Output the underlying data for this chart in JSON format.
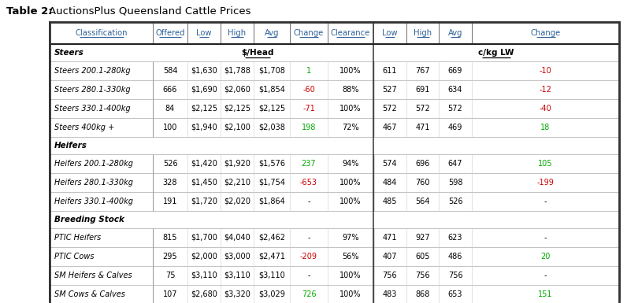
{
  "title_bold": "Table 2:",
  "title_regular": "AuctionsPlus Queensland Cattle Prices",
  "headers": [
    "Classification",
    "Offered",
    "Low",
    "High",
    "Avg",
    "Change",
    "Clearance",
    "Low",
    "High",
    "Avg",
    "Change"
  ],
  "rows": [
    {
      "type": "section",
      "cat": "Steers",
      "subhead_dollar": "$/Head",
      "subhead_ckg": "c/kg LW"
    },
    {
      "type": "data",
      "cat": "Steers 200.1-280kg",
      "offered": "584",
      "low": "$1,630",
      "high": "$1,788",
      "avg": "$1,708",
      "change": "1",
      "change_color": "green",
      "clearance": "100%",
      "clow": "611",
      "chigh": "767",
      "cavg": "669",
      "cchange": "-10",
      "cchange_color": "red"
    },
    {
      "type": "data",
      "cat": "Steers 280.1-330kg",
      "offered": "666",
      "low": "$1,690",
      "high": "$2,060",
      "avg": "$1,854",
      "change": "-60",
      "change_color": "red",
      "clearance": "88%",
      "clow": "527",
      "chigh": "691",
      "cavg": "634",
      "cchange": "-12",
      "cchange_color": "red"
    },
    {
      "type": "data",
      "cat": "Steers 330.1-400kg",
      "offered": "84",
      "low": "$2,125",
      "high": "$2,125",
      "avg": "$2,125",
      "change": "-71",
      "change_color": "red",
      "clearance": "100%",
      "clow": "572",
      "chigh": "572",
      "cavg": "572",
      "cchange": "-40",
      "cchange_color": "red"
    },
    {
      "type": "data",
      "cat": "Steers 400kg +",
      "offered": "100",
      "low": "$1,940",
      "high": "$2,100",
      "avg": "$2,038",
      "change": "198",
      "change_color": "green",
      "clearance": "72%",
      "clow": "467",
      "chigh": "471",
      "cavg": "469",
      "cchange": "18",
      "cchange_color": "green"
    },
    {
      "type": "section",
      "cat": "Heifers",
      "subhead_dollar": "",
      "subhead_ckg": ""
    },
    {
      "type": "data",
      "cat": "Heifers 200.1-280kg",
      "offered": "526",
      "low": "$1,420",
      "high": "$1,920",
      "avg": "$1,576",
      "change": "237",
      "change_color": "green",
      "clearance": "94%",
      "clow": "574",
      "chigh": "696",
      "cavg": "647",
      "cchange": "105",
      "cchange_color": "green"
    },
    {
      "type": "data",
      "cat": "Heifers 280.1-330kg",
      "offered": "328",
      "low": "$1,450",
      "high": "$2,210",
      "avg": "$1,754",
      "change": "-653",
      "change_color": "red",
      "clearance": "100%",
      "clow": "484",
      "chigh": "760",
      "cavg": "598",
      "cchange": "-199",
      "cchange_color": "red"
    },
    {
      "type": "data",
      "cat": "Heifers 330.1-400kg",
      "offered": "191",
      "low": "$1,720",
      "high": "$2,020",
      "avg": "$1,864",
      "change": "-",
      "change_color": "black",
      "clearance": "100%",
      "clow": "485",
      "chigh": "564",
      "cavg": "526",
      "cchange": "-",
      "cchange_color": "black"
    },
    {
      "type": "section",
      "cat": "Breeding Stock",
      "subhead_dollar": "",
      "subhead_ckg": ""
    },
    {
      "type": "data",
      "cat": "PTIC Heifers",
      "offered": "815",
      "low": "$1,700",
      "high": "$4,040",
      "avg": "$2,462",
      "change": "-",
      "change_color": "black",
      "clearance": "97%",
      "clow": "471",
      "chigh": "927",
      "cavg": "623",
      "cchange": "-",
      "cchange_color": "black"
    },
    {
      "type": "data",
      "cat": "PTIC Cows",
      "offered": "295",
      "low": "$2,000",
      "high": "$3,000",
      "avg": "$2,471",
      "change": "-209",
      "change_color": "red",
      "clearance": "56%",
      "clow": "407",
      "chigh": "605",
      "cavg": "486",
      "cchange": "20",
      "cchange_color": "green"
    },
    {
      "type": "data",
      "cat": "SM Heifers & Calves",
      "offered": "75",
      "low": "$3,110",
      "high": "$3,110",
      "avg": "$3,110",
      "change": "-",
      "change_color": "black",
      "clearance": "100%",
      "clow": "756",
      "chigh": "756",
      "cavg": "756",
      "cchange": "-",
      "cchange_color": "black"
    },
    {
      "type": "data",
      "cat": "SM Cows & Calves",
      "offered": "107",
      "low": "$2,680",
      "high": "$3,320",
      "avg": "$3,029",
      "change": "726",
      "change_color": "green",
      "clearance": "100%",
      "clow": "483",
      "chigh": "868",
      "cavg": "653",
      "cchange": "151",
      "cchange_color": "green"
    }
  ],
  "header_text_color": "#2e6099",
  "green_color": "#00aa00",
  "red_color": "#cc0000",
  "black_color": "#000000",
  "border_dark": "#333333",
  "border_light": "#aaaaaa"
}
